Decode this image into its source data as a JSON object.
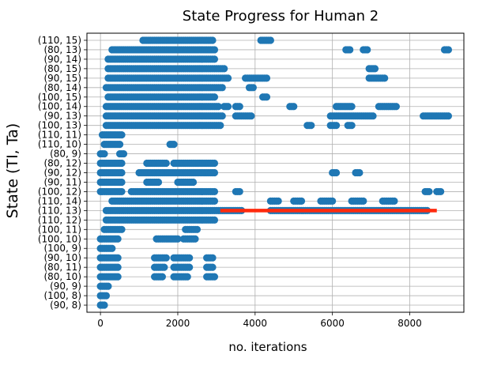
{
  "chart_data": {
    "type": "scatter",
    "title": "State Progress for Human 2",
    "xlabel": "no. iterations",
    "ylabel": "State (TI, Ta)",
    "xlim": [
      -350,
      9400
    ],
    "x_ticks": [
      0,
      2000,
      4000,
      6000,
      8000
    ],
    "grid": true,
    "categories": [
      "(90, 8)",
      "(100, 8)",
      "(90, 9)",
      "(80, 10)",
      "(80, 11)",
      "(90, 10)",
      "(100, 9)",
      "(100, 10)",
      "(100, 11)",
      "(110, 12)",
      "(110, 13)",
      "(110, 14)",
      "(100, 12)",
      "(90, 11)",
      "(90, 12)",
      "(80, 12)",
      "(80, 9)",
      "(110, 10)",
      "(110, 11)",
      "(100, 13)",
      "(90, 13)",
      "(100, 14)",
      "(100, 15)",
      "(80, 14)",
      "(90, 15)",
      "(80, 15)",
      "(90, 14)",
      "(80, 13)",
      "(110, 15)"
    ],
    "scatter_color": "#1f77b4",
    "series": [
      {
        "type": "scatter",
        "segments": [
          {
            "y": "(90, 8)",
            "ranges": [
              [
                0,
                100
              ]
            ]
          },
          {
            "y": "(100, 8)",
            "ranges": [
              [
                0,
                150
              ]
            ]
          },
          {
            "y": "(90, 9)",
            "ranges": [
              [
                0,
                200
              ]
            ]
          },
          {
            "y": "(80, 10)",
            "ranges": [
              [
                0,
                450
              ],
              [
                1400,
                1600
              ],
              [
                1900,
                2250
              ],
              [
                2750,
                2950
              ]
            ]
          },
          {
            "y": "(80, 11)",
            "ranges": [
              [
                0,
                450
              ],
              [
                1400,
                1650
              ],
              [
                1900,
                2300
              ],
              [
                2750,
                2900
              ]
            ]
          },
          {
            "y": "(90, 10)",
            "ranges": [
              [
                0,
                450
              ],
              [
                1400,
                1700
              ],
              [
                1900,
                2300
              ],
              [
                2750,
                2900
              ]
            ]
          },
          {
            "y": "(100, 9)",
            "ranges": [
              [
                0,
                300
              ]
            ]
          },
          {
            "y": "(100, 10)",
            "ranges": [
              [
                0,
                450
              ],
              [
                1450,
                2000
              ],
              [
                2150,
                2450
              ]
            ]
          },
          {
            "y": "(100, 11)",
            "ranges": [
              [
                100,
                550
              ],
              [
                2200,
                2500
              ]
            ]
          },
          {
            "y": "(110, 12)",
            "ranges": [
              [
                150,
                2950
              ]
            ]
          },
          {
            "y": "(110, 13)",
            "ranges": [
              [
                150,
                3650
              ],
              [
                4400,
                8450
              ]
            ]
          },
          {
            "y": "(110, 14)",
            "ranges": [
              [
                300,
                2950
              ],
              [
                4400,
                4600
              ],
              [
                5000,
                5200
              ],
              [
                5700,
                6000
              ],
              [
                6500,
                6800
              ],
              [
                7300,
                7600
              ]
            ]
          },
          {
            "y": "(100, 12)",
            "ranges": [
              [
                0,
                550
              ],
              [
                800,
                2950
              ],
              [
                3500,
                3600
              ],
              [
                8400,
                8500
              ],
              [
                8700,
                8800
              ]
            ]
          },
          {
            "y": "(90, 11)",
            "ranges": [
              [
                0,
                550
              ],
              [
                1200,
                1500
              ],
              [
                2000,
                2400
              ]
            ]
          },
          {
            "y": "(90, 12)",
            "ranges": [
              [
                0,
                550
              ],
              [
                1000,
                2950
              ],
              [
                6000,
                6100
              ],
              [
                6600,
                6700
              ]
            ]
          },
          {
            "y": "(80, 12)",
            "ranges": [
              [
                0,
                550
              ],
              [
                1200,
                1700
              ],
              [
                1900,
                2950
              ]
            ]
          },
          {
            "y": "(80, 9)",
            "ranges": [
              [
                0,
                100
              ],
              [
                500,
                600
              ]
            ]
          },
          {
            "y": "(110, 10)",
            "ranges": [
              [
                100,
                500
              ],
              [
                1800,
                1900
              ]
            ]
          },
          {
            "y": "(110, 11)",
            "ranges": [
              [
                50,
                550
              ]
            ]
          },
          {
            "y": "(100, 13)",
            "ranges": [
              [
                150,
                3100
              ],
              [
                5350,
                5450
              ],
              [
                5950,
                6100
              ],
              [
                6400,
                6500
              ]
            ]
          },
          {
            "y": "(90, 13)",
            "ranges": [
              [
                150,
                3150
              ],
              [
                3500,
                3900
              ],
              [
                5950,
                7050
              ],
              [
                8350,
                9000
              ]
            ]
          },
          {
            "y": "(100, 14)",
            "ranges": [
              [
                150,
                3050
              ],
              [
                3200,
                3300
              ],
              [
                3500,
                3600
              ],
              [
                4900,
                5000
              ],
              [
                6100,
                6500
              ],
              [
                7200,
                7650
              ]
            ]
          },
          {
            "y": "(100, 15)",
            "ranges": [
              [
                200,
                2950
              ],
              [
                4200,
                4300
              ]
            ]
          },
          {
            "y": "(80, 14)",
            "ranges": [
              [
                150,
                3150
              ],
              [
                3850,
                3950
              ]
            ]
          },
          {
            "y": "(90, 15)",
            "ranges": [
              [
                200,
                3300
              ],
              [
                3750,
                4300
              ],
              [
                6950,
                7350
              ]
            ]
          },
          {
            "y": "(80, 15)",
            "ranges": [
              [
                200,
                3200
              ],
              [
                6950,
                7100
              ]
            ]
          },
          {
            "y": "(90, 14)",
            "ranges": [
              [
                200,
                2950
              ]
            ]
          },
          {
            "y": "(80, 13)",
            "ranges": [
              [
                300,
                2950
              ],
              [
                6350,
                6450
              ],
              [
                6800,
                6900
              ],
              [
                8900,
                9000
              ]
            ]
          },
          {
            "y": "(110, 15)",
            "ranges": [
              [
                1100,
                2900
              ],
              [
                4150,
                4400
              ]
            ]
          }
        ]
      },
      {
        "type": "line",
        "color": "#ff2a0d",
        "x": [
          3100,
          8700
        ],
        "y": [
          "(110, 13)",
          "(110, 13)"
        ]
      }
    ]
  }
}
